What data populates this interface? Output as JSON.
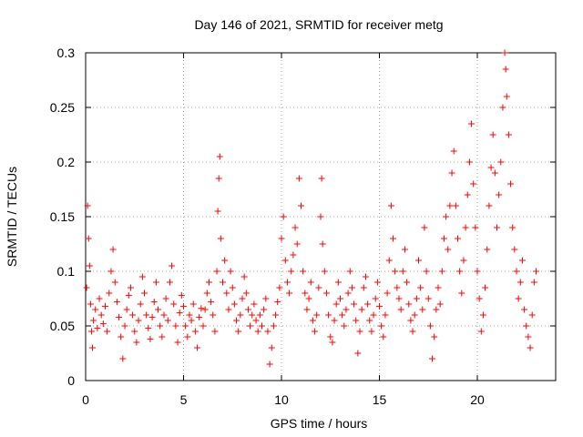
{
  "chart_data": {
    "type": "scatter",
    "title": "Day 146 of 2021, SRMTID for receiver metg",
    "xlabel": "GPS time / hours",
    "ylabel": "SRMTID / TECUs",
    "xlim": [
      0,
      24
    ],
    "ylim": [
      0,
      0.3
    ],
    "x_ticks": [
      0,
      5,
      10,
      15,
      20
    ],
    "x_tick_labels": [
      "0",
      "5",
      "10",
      "15",
      "20"
    ],
    "y_ticks": [
      0,
      0.05,
      0.1,
      0.15,
      0.2,
      0.25,
      0.3
    ],
    "y_tick_labels": [
      "0",
      "0.05",
      "0.1",
      "0.15",
      "0.2",
      "0.25",
      "0.3"
    ],
    "grid": true,
    "marker": "+",
    "series": [
      {
        "name": "SRMTID",
        "color": "#ff0000",
        "points": [
          [
            0.05,
            0.085
          ],
          [
            0.1,
            0.16
          ],
          [
            0.15,
            0.13
          ],
          [
            0.2,
            0.105
          ],
          [
            0.25,
            0.07
          ],
          [
            0.3,
            0.045
          ],
          [
            0.35,
            0.03
          ],
          [
            0.4,
            0.055
          ],
          [
            0.5,
            0.065
          ],
          [
            0.6,
            0.048
          ],
          [
            0.7,
            0.075
          ],
          [
            0.8,
            0.06
          ],
          [
            0.9,
            0.052
          ],
          [
            1.0,
            0.068
          ],
          [
            1.1,
            0.045
          ],
          [
            1.2,
            0.08
          ],
          [
            1.3,
            0.1
          ],
          [
            1.4,
            0.12
          ],
          [
            1.5,
            0.09
          ],
          [
            1.6,
            0.072
          ],
          [
            1.7,
            0.058
          ],
          [
            1.8,
            0.04
          ],
          [
            1.9,
            0.02
          ],
          [
            2.0,
            0.05
          ],
          [
            2.1,
            0.065
          ],
          [
            2.2,
            0.078
          ],
          [
            2.3,
            0.085
          ],
          [
            2.4,
            0.06
          ],
          [
            2.5,
            0.045
          ],
          [
            2.6,
            0.035
          ],
          [
            2.7,
            0.055
          ],
          [
            2.8,
            0.07
          ],
          [
            2.9,
            0.095
          ],
          [
            3.0,
            0.08
          ],
          [
            3.1,
            0.06
          ],
          [
            3.2,
            0.048
          ],
          [
            3.3,
            0.038
          ],
          [
            3.4,
            0.058
          ],
          [
            3.5,
            0.072
          ],
          [
            3.6,
            0.09
          ],
          [
            3.7,
            0.065
          ],
          [
            3.8,
            0.05
          ],
          [
            3.9,
            0.04
          ],
          [
            4.0,
            0.06
          ],
          [
            4.1,
            0.075
          ],
          [
            4.2,
            0.055
          ],
          [
            4.3,
            0.09
          ],
          [
            4.4,
            0.105
          ],
          [
            4.5,
            0.07
          ],
          [
            4.6,
            0.05
          ],
          [
            4.7,
            0.035
          ],
          [
            4.8,
            0.062
          ],
          [
            4.9,
            0.078
          ],
          [
            5.0,
            0.068
          ],
          [
            5.1,
            0.05
          ],
          [
            5.2,
            0.04
          ],
          [
            5.3,
            0.06
          ],
          [
            5.4,
            0.055
          ],
          [
            5.5,
            0.07
          ],
          [
            5.6,
            0.045
          ],
          [
            5.7,
            0.03
          ],
          [
            5.8,
            0.058
          ],
          [
            5.9,
            0.066
          ],
          [
            6.0,
            0.05
          ],
          [
            6.1,
            0.065
          ],
          [
            6.2,
            0.08
          ],
          [
            6.3,
            0.09
          ],
          [
            6.4,
            0.072
          ],
          [
            6.5,
            0.06
          ],
          [
            6.6,
            0.045
          ],
          [
            6.7,
            0.1
          ],
          [
            6.75,
            0.155
          ],
          [
            6.8,
            0.185
          ],
          [
            6.85,
            0.205
          ],
          [
            6.9,
            0.13
          ],
          [
            7.0,
            0.09
          ],
          [
            7.1,
            0.11
          ],
          [
            7.2,
            0.08
          ],
          [
            7.3,
            0.065
          ],
          [
            7.4,
            0.1
          ],
          [
            7.5,
            0.085
          ],
          [
            7.6,
            0.07
          ],
          [
            7.7,
            0.055
          ],
          [
            7.8,
            0.045
          ],
          [
            7.9,
            0.06
          ],
          [
            8.0,
            0.075
          ],
          [
            8.1,
            0.095
          ],
          [
            8.2,
            0.08
          ],
          [
            8.3,
            0.065
          ],
          [
            8.4,
            0.05
          ],
          [
            8.5,
            0.06
          ],
          [
            8.6,
            0.07
          ],
          [
            8.7,
            0.055
          ],
          [
            8.8,
            0.045
          ],
          [
            8.9,
            0.06
          ],
          [
            9.0,
            0.05
          ],
          [
            9.1,
            0.065
          ],
          [
            9.2,
            0.075
          ],
          [
            9.3,
            0.045
          ],
          [
            9.4,
            0.015
          ],
          [
            9.5,
            0.03
          ],
          [
            9.6,
            0.05
          ],
          [
            9.7,
            0.06
          ],
          [
            9.8,
            0.072
          ],
          [
            9.9,
            0.085
          ],
          [
            10.0,
            0.13
          ],
          [
            10.1,
            0.15
          ],
          [
            10.2,
            0.11
          ],
          [
            10.3,
            0.09
          ],
          [
            10.4,
            0.08
          ],
          [
            10.5,
            0.1
          ],
          [
            10.6,
            0.115
          ],
          [
            10.7,
            0.14
          ],
          [
            10.8,
            0.125
          ],
          [
            10.9,
            0.185
          ],
          [
            11.0,
            0.16
          ],
          [
            11.1,
            0.1
          ],
          [
            11.2,
            0.08
          ],
          [
            11.3,
            0.065
          ],
          [
            11.4,
            0.075
          ],
          [
            11.5,
            0.09
          ],
          [
            11.6,
            0.055
          ],
          [
            11.7,
            0.045
          ],
          [
            11.8,
            0.06
          ],
          [
            11.9,
            0.085
          ],
          [
            12.0,
            0.15
          ],
          [
            12.05,
            0.185
          ],
          [
            12.1,
            0.125
          ],
          [
            12.2,
            0.1
          ],
          [
            12.3,
            0.08
          ],
          [
            12.4,
            0.06
          ],
          [
            12.5,
            0.04
          ],
          [
            12.6,
            0.035
          ],
          [
            12.7,
            0.055
          ],
          [
            12.8,
            0.07
          ],
          [
            12.9,
            0.09
          ],
          [
            13.0,
            0.075
          ],
          [
            13.1,
            0.06
          ],
          [
            13.2,
            0.05
          ],
          [
            13.3,
            0.065
          ],
          [
            13.4,
            0.08
          ],
          [
            13.5,
            0.1
          ],
          [
            13.6,
            0.085
          ],
          [
            13.7,
            0.07
          ],
          [
            13.8,
            0.055
          ],
          [
            13.9,
            0.025
          ],
          [
            14.0,
            0.045
          ],
          [
            14.1,
            0.065
          ],
          [
            14.2,
            0.085
          ],
          [
            14.3,
            0.095
          ],
          [
            14.4,
            0.07
          ],
          [
            14.5,
            0.055
          ],
          [
            14.6,
            0.045
          ],
          [
            14.7,
            0.06
          ],
          [
            14.8,
            0.075
          ],
          [
            14.9,
            0.09
          ],
          [
            15.0,
            0.068
          ],
          [
            15.1,
            0.05
          ],
          [
            15.2,
            0.04
          ],
          [
            15.3,
            0.06
          ],
          [
            15.4,
            0.08
          ],
          [
            15.5,
            0.11
          ],
          [
            15.6,
            0.16
          ],
          [
            15.7,
            0.13
          ],
          [
            15.8,
            0.1
          ],
          [
            15.9,
            0.085
          ],
          [
            16.0,
            0.075
          ],
          [
            16.1,
            0.065
          ],
          [
            16.2,
            0.1
          ],
          [
            16.3,
            0.12
          ],
          [
            16.4,
            0.09
          ],
          [
            16.5,
            0.07
          ],
          [
            16.6,
            0.055
          ],
          [
            16.7,
            0.045
          ],
          [
            16.8,
            0.06
          ],
          [
            16.9,
            0.075
          ],
          [
            17.0,
            0.11
          ],
          [
            17.1,
            0.085
          ],
          [
            17.2,
            0.065
          ],
          [
            17.3,
            0.14
          ],
          [
            17.4,
            0.1
          ],
          [
            17.5,
            0.075
          ],
          [
            17.6,
            0.05
          ],
          [
            17.7,
            0.02
          ],
          [
            17.8,
            0.04
          ],
          [
            17.9,
            0.065
          ],
          [
            18.0,
            0.085
          ],
          [
            18.1,
            0.07
          ],
          [
            18.2,
            0.1
          ],
          [
            18.3,
            0.13
          ],
          [
            18.4,
            0.15
          ],
          [
            18.5,
            0.12
          ],
          [
            18.6,
            0.16
          ],
          [
            18.7,
            0.19
          ],
          [
            18.8,
            0.21
          ],
          [
            18.9,
            0.16
          ],
          [
            19.0,
            0.13
          ],
          [
            19.1,
            0.1
          ],
          [
            19.2,
            0.08
          ],
          [
            19.3,
            0.11
          ],
          [
            19.4,
            0.14
          ],
          [
            19.5,
            0.17
          ],
          [
            19.6,
            0.2
          ],
          [
            19.7,
            0.235
          ],
          [
            19.8,
            0.18
          ],
          [
            19.9,
            0.14
          ],
          [
            20.0,
            0.1
          ],
          [
            20.1,
            0.075
          ],
          [
            20.2,
            0.045
          ],
          [
            20.3,
            0.06
          ],
          [
            20.4,
            0.085
          ],
          [
            20.5,
            0.12
          ],
          [
            20.6,
            0.16
          ],
          [
            20.7,
            0.195
          ],
          [
            20.8,
            0.225
          ],
          [
            20.9,
            0.19
          ],
          [
            21.0,
            0.14
          ],
          [
            21.1,
            0.17
          ],
          [
            21.2,
            0.2
          ],
          [
            21.3,
            0.25
          ],
          [
            21.4,
            0.3
          ],
          [
            21.45,
            0.285
          ],
          [
            21.5,
            0.26
          ],
          [
            21.6,
            0.225
          ],
          [
            21.7,
            0.18
          ],
          [
            21.8,
            0.14
          ],
          [
            21.9,
            0.12
          ],
          [
            22.0,
            0.1
          ],
          [
            22.1,
            0.075
          ],
          [
            22.2,
            0.09
          ],
          [
            22.3,
            0.11
          ],
          [
            22.4,
            0.065
          ],
          [
            22.5,
            0.05
          ],
          [
            22.6,
            0.04
          ],
          [
            22.7,
            0.03
          ],
          [
            22.8,
            0.06
          ],
          [
            22.9,
            0.09
          ],
          [
            23.0,
            0.1
          ]
        ]
      }
    ]
  }
}
